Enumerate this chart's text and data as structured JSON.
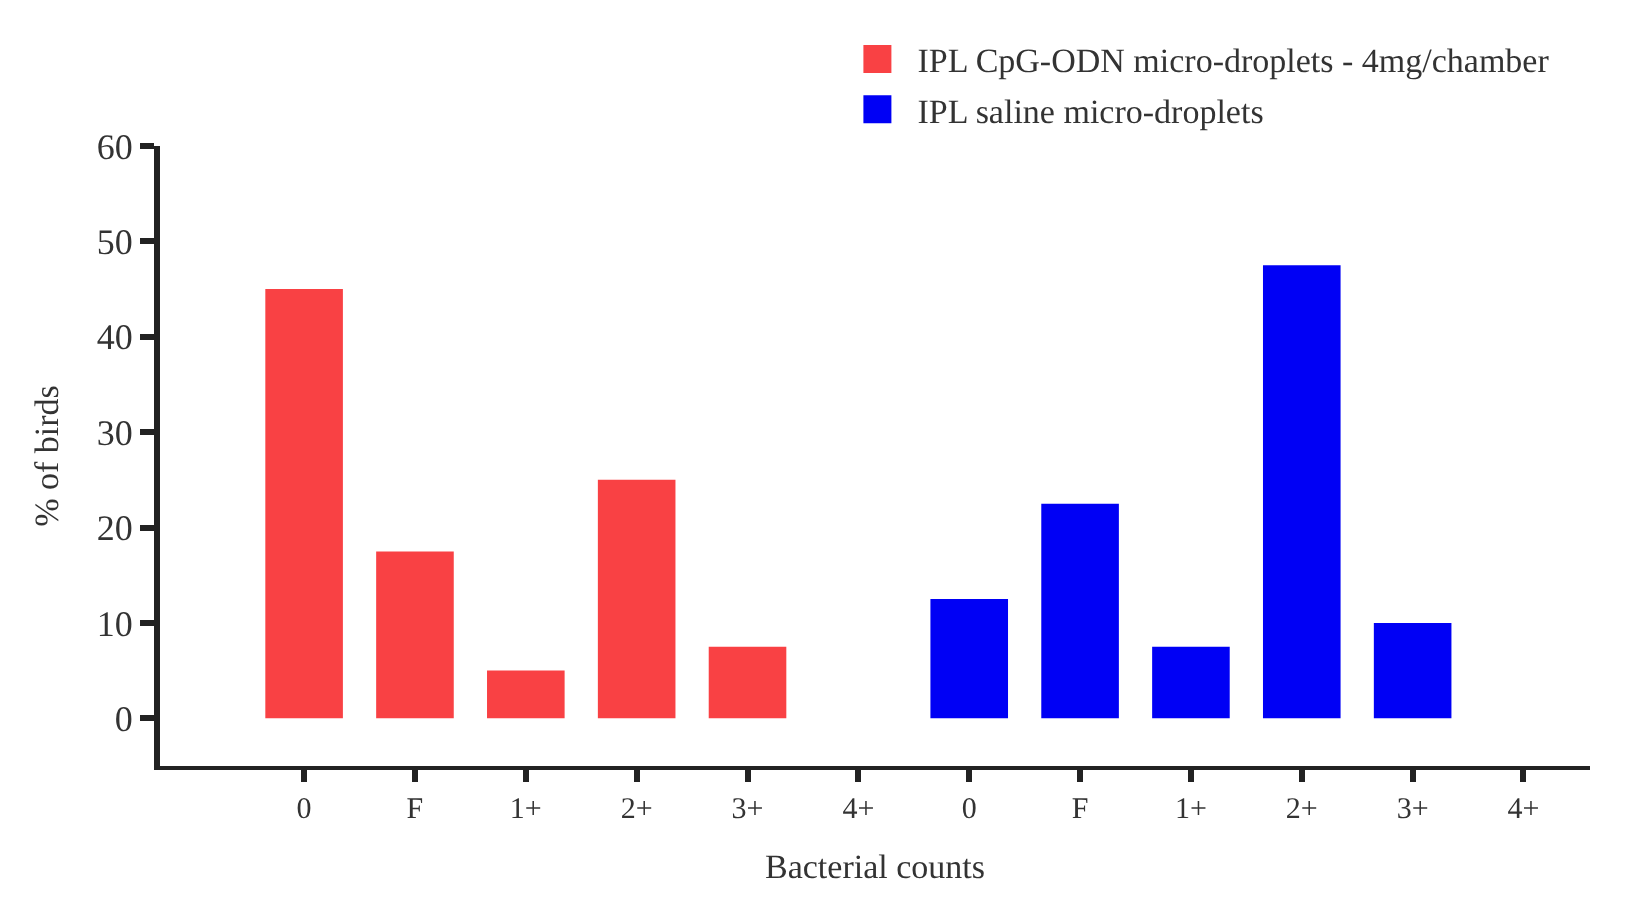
{
  "chart_data": {
    "type": "bar",
    "xlabel": "Bacterial counts",
    "ylabel": "% of birds",
    "categories": [
      "0",
      "F",
      "1+",
      "2+",
      "3+",
      "4+",
      "0",
      "F",
      "1+",
      "2+",
      "3+",
      "4+"
    ],
    "series": [
      {
        "name": "IPL CpG-ODN micro-droplets - 4mg/chamber",
        "color": "#f94144",
        "values": [
          45,
          17.5,
          5,
          25,
          7.5,
          0,
          null,
          null,
          null,
          null,
          null,
          null
        ]
      },
      {
        "name": "IPL saline micro-droplets",
        "color": "#0000f5",
        "values": [
          null,
          null,
          null,
          null,
          null,
          null,
          12.5,
          22.5,
          7.5,
          47.5,
          10,
          0
        ]
      }
    ],
    "ylim": [
      -5,
      60
    ],
    "yticks": [
      0,
      10,
      20,
      30,
      40,
      50,
      60
    ],
    "legend": "top right"
  }
}
